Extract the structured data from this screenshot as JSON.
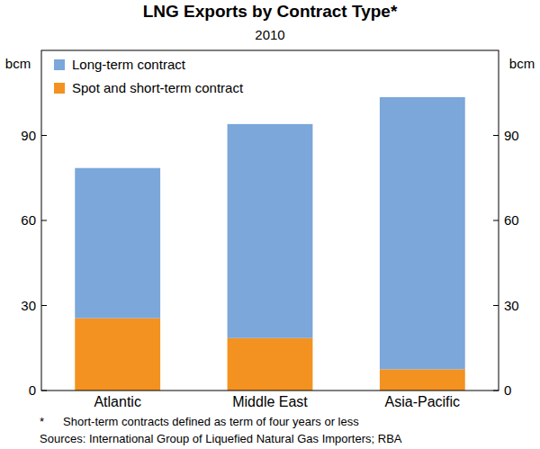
{
  "chart_data": {
    "type": "bar",
    "stacked": true,
    "title": "LNG Exports by Contract Type*",
    "subtitle": "2010",
    "y_label": "bcm",
    "categories": [
      "Atlantic",
      "Middle East",
      "Asia-Pacific"
    ],
    "series": [
      {
        "name": "Long-term contract",
        "color": "#7ba7da",
        "values": [
          53,
          75.5,
          96
        ]
      },
      {
        "name": "Spot and short-term contract",
        "color": "#f39220",
        "values": [
          25.5,
          18.5,
          7.5
        ]
      }
    ],
    "ylim": [
      0,
      120
    ],
    "yticks": [
      0,
      30,
      60,
      90
    ],
    "grid": false,
    "legend": "top-left",
    "notes": [
      "*",
      "Short-term contracts defined as term of four years or less"
    ],
    "source": "Sources: International Group of Liquefied Natural Gas Importers; RBA"
  }
}
